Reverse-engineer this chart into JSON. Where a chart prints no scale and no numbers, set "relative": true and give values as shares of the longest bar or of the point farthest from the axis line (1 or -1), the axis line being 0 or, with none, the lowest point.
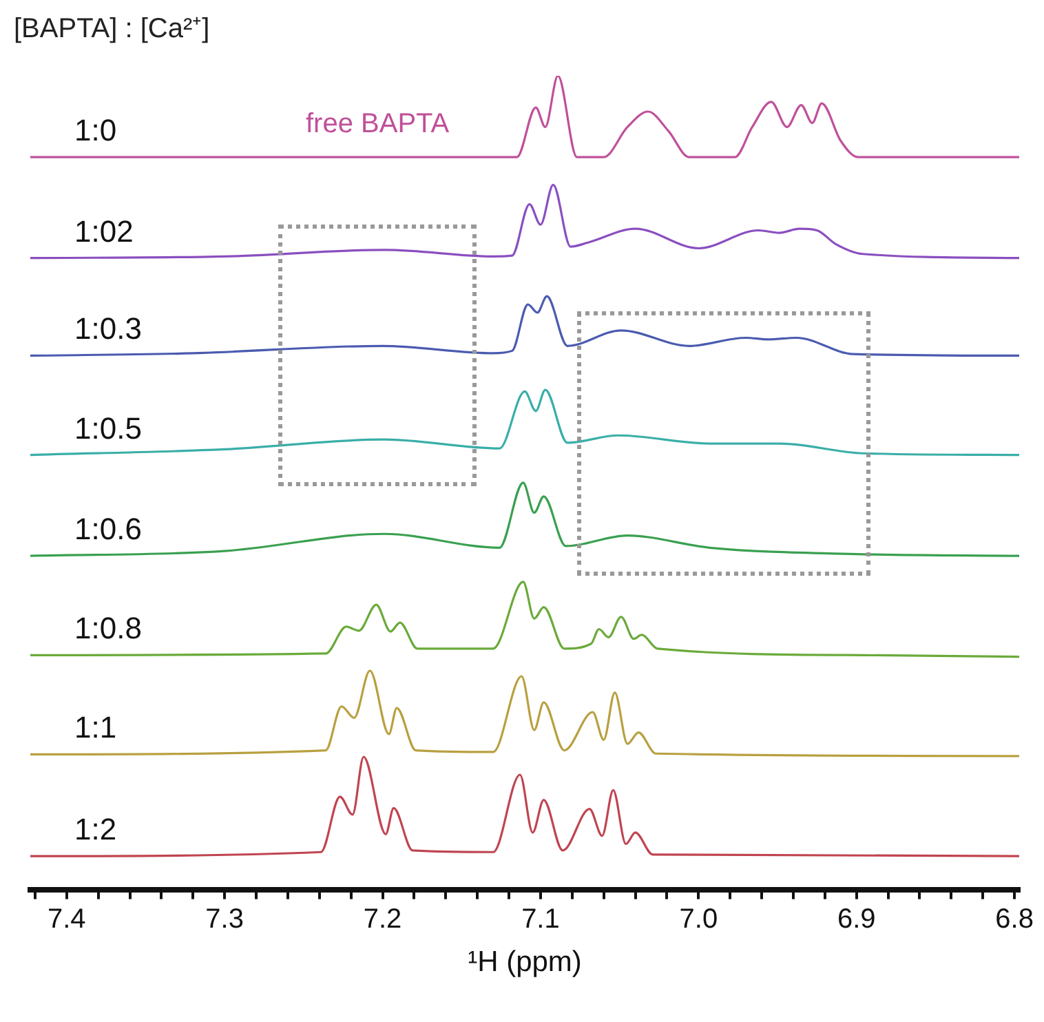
{
  "chart_data": {
    "type": "line",
    "legend_title": "[BAPTA] : [Ca²⁺]",
    "xlabel": "¹H (ppm)",
    "relative": true,
    "marker": "none",
    "tick_labels": "x",
    "xlim": [
      7.423,
      6.797
    ],
    "xticks": [
      {
        "value": 7.42,
        "label": null
      },
      7.4,
      {
        "value": 7.38,
        "label": null
      },
      {
        "value": 7.36,
        "label": null
      },
      {
        "value": 7.34,
        "label": null
      },
      {
        "value": 7.32,
        "label": null
      },
      7.3,
      {
        "value": 7.28,
        "label": null
      },
      {
        "value": 7.26,
        "label": null
      },
      {
        "value": 7.24,
        "label": null
      },
      {
        "value": 7.22,
        "label": null
      },
      7.2,
      {
        "value": 7.18,
        "label": null
      },
      {
        "value": 7.16,
        "label": null
      },
      {
        "value": 7.14,
        "label": null
      },
      {
        "value": 7.12,
        "label": null
      },
      7.1,
      {
        "value": 7.08,
        "label": null
      },
      {
        "value": 7.06,
        "label": null
      },
      {
        "value": 7.04,
        "label": null
      },
      {
        "value": 7.02,
        "label": null
      },
      {
        "value": 7.0,
        "label": "7.0"
      },
      {
        "value": 6.98,
        "label": null
      },
      {
        "value": 6.96,
        "label": null
      },
      {
        "value": 6.94,
        "label": null
      },
      {
        "value": 6.92,
        "label": null
      },
      6.9,
      {
        "value": 6.88,
        "label": null
      },
      {
        "value": 6.86,
        "label": null
      },
      {
        "value": 6.84,
        "label": null
      },
      {
        "value": 6.82,
        "label": null
      },
      6.8
    ],
    "annotations": [
      "free BAPTA"
    ],
    "series": [
      {
        "name": "1:0",
        "color": "#c0509a",
        "x": [
          7.423,
          7.115,
          7.103,
          7.097,
          7.089,
          7.077,
          7.06,
          7.045,
          7.032,
          7.019,
          7.006,
          6.977,
          6.966,
          6.954,
          6.944,
          6.935,
          6.928,
          6.922,
          6.91,
          6.899,
          6.797
        ],
        "values": [
          0.9,
          0.9,
          0.961,
          0.937,
          1.0,
          0.9,
          0.9,
          0.937,
          0.956,
          0.932,
          0.9,
          0.9,
          0.937,
          0.968,
          0.937,
          0.964,
          0.942,
          0.966,
          0.92,
          0.9,
          0.9
        ]
      },
      {
        "name": "1:02",
        "color": "#8a4fc0",
        "x": [
          7.423,
          7.3,
          7.198,
          7.13,
          7.118,
          7.107,
          7.1,
          7.092,
          7.081,
          7.07,
          7.04,
          7.0,
          6.962,
          6.949,
          6.936,
          6.925,
          6.913,
          6.896,
          6.797
        ],
        "values": [
          0.776,
          0.778,
          0.786,
          0.778,
          0.779,
          0.842,
          0.817,
          0.866,
          0.79,
          0.795,
          0.812,
          0.788,
          0.81,
          0.807,
          0.812,
          0.81,
          0.793,
          0.781,
          0.776
        ]
      },
      {
        "name": "1:0.3",
        "color": "#4a5bb0",
        "x": [
          7.423,
          7.32,
          7.2,
          7.13,
          7.118,
          7.108,
          7.102,
          7.096,
          7.083,
          7.049,
          7.006,
          6.97,
          6.956,
          6.938,
          6.902,
          6.797
        ],
        "values": [
          0.656,
          0.659,
          0.668,
          0.659,
          0.662,
          0.719,
          0.709,
          0.729,
          0.668,
          0.687,
          0.668,
          0.678,
          0.676,
          0.678,
          0.658,
          0.656
        ]
      },
      {
        "name": "1:0.5",
        "color": "#3aaea8",
        "x": [
          7.423,
          7.3,
          7.199,
          7.126,
          7.11,
          7.103,
          7.097,
          7.083,
          7.051,
          6.993,
          6.948,
          6.896,
          6.797
        ],
        "values": [
          0.534,
          0.541,
          0.553,
          0.542,
          0.612,
          0.588,
          0.614,
          0.549,
          0.558,
          0.548,
          0.548,
          0.536,
          0.534
        ]
      },
      {
        "name": "1:0.6",
        "color": "#3aa050",
        "x": [
          7.423,
          7.3,
          7.199,
          7.126,
          7.111,
          7.104,
          7.098,
          7.084,
          7.045,
          6.993,
          6.896,
          6.797
        ],
        "values": [
          0.41,
          0.416,
          0.437,
          0.42,
          0.5,
          0.463,
          0.483,
          0.422,
          0.435,
          0.42,
          0.412,
          0.41
        ]
      },
      {
        "name": "1:0.8",
        "color": "#6aaa3a",
        "x": [
          7.423,
          7.236,
          7.223,
          7.215,
          7.204,
          7.195,
          7.189,
          7.178,
          7.13,
          7.111,
          7.104,
          7.098,
          7.085,
          7.068,
          7.063,
          7.057,
          7.049,
          7.041,
          7.036,
          7.026,
          6.896,
          6.797
        ],
        "values": [
          0.288,
          0.29,
          0.323,
          0.318,
          0.35,
          0.317,
          0.328,
          0.296,
          0.296,
          0.378,
          0.333,
          0.347,
          0.296,
          0.302,
          0.32,
          0.31,
          0.335,
          0.308,
          0.313,
          0.296,
          0.288,
          0.286
        ]
      },
      {
        "name": "1:1",
        "color": "#b8a040",
        "x": [
          7.423,
          7.236,
          7.226,
          7.218,
          7.208,
          7.196,
          7.191,
          7.179,
          7.13,
          7.112,
          7.104,
          7.098,
          7.085,
          7.067,
          7.06,
          7.053,
          7.045,
          7.038,
          7.027,
          6.797
        ],
        "values": [
          0.166,
          0.171,
          0.225,
          0.211,
          0.269,
          0.191,
          0.223,
          0.171,
          0.169,
          0.262,
          0.196,
          0.23,
          0.171,
          0.218,
          0.184,
          0.242,
          0.179,
          0.193,
          0.167,
          0.164
        ]
      },
      {
        "name": "1:2",
        "color": "#c04550",
        "x": [
          7.423,
          7.239,
          7.227,
          7.219,
          7.212,
          7.198,
          7.193,
          7.181,
          7.13,
          7.113,
          7.105,
          7.098,
          7.086,
          7.069,
          7.061,
          7.054,
          7.046,
          7.04,
          7.029,
          6.797
        ],
        "values": [
          0.041,
          0.046,
          0.114,
          0.092,
          0.163,
          0.068,
          0.1,
          0.048,
          0.046,
          0.141,
          0.07,
          0.11,
          0.048,
          0.099,
          0.066,
          0.122,
          0.056,
          0.07,
          0.043,
          0.041
        ]
      }
    ]
  }
}
